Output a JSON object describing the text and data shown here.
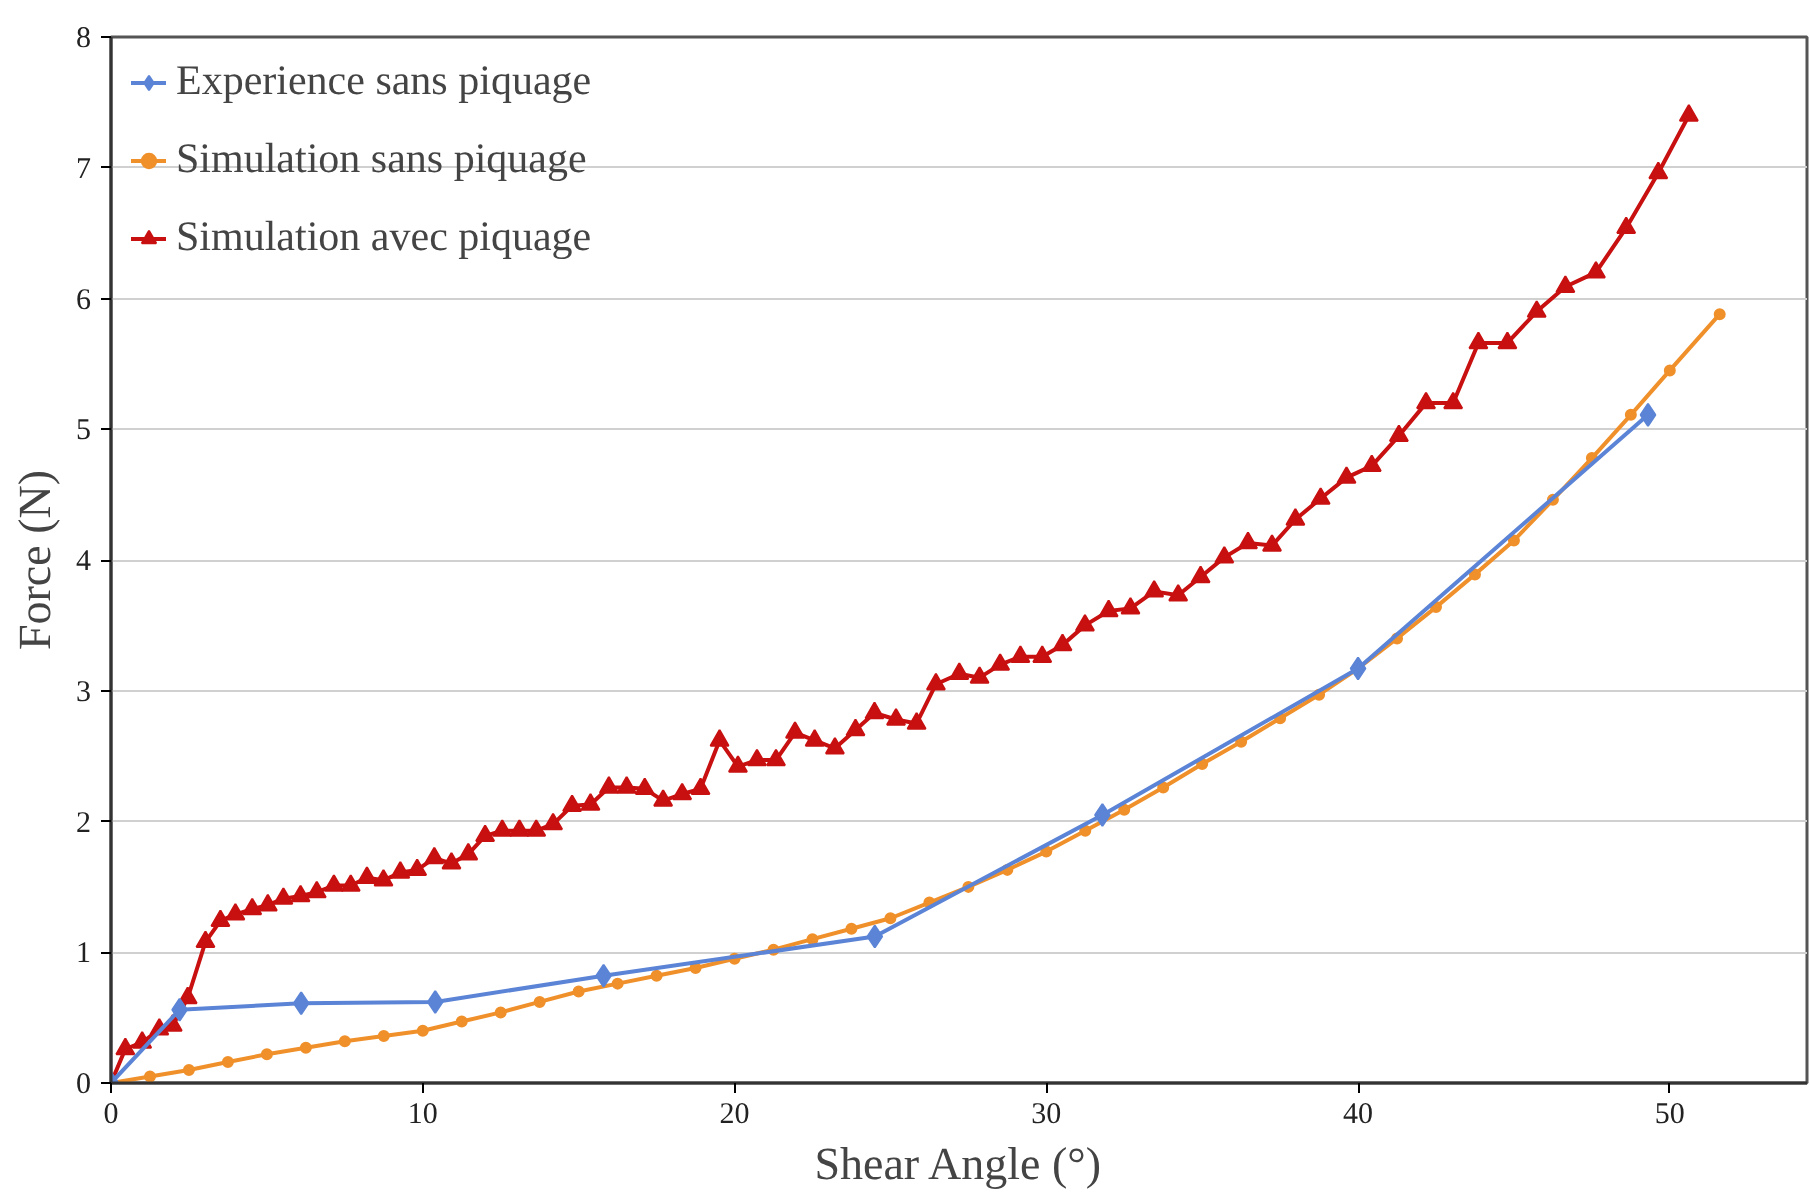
{
  "chart_data": {
    "type": "line",
    "xlabel": "Shear Angle (°)",
    "ylabel": "Force (N)",
    "xlim": [
      0,
      54.4
    ],
    "xticks": [
      0,
      10,
      20,
      30,
      40,
      50
    ],
    "ylim": [
      0,
      8
    ],
    "yticks": [
      0,
      1,
      2,
      3,
      4,
      5,
      6,
      7,
      8
    ],
    "grid": "y",
    "legend": "top left",
    "line_style": "solid",
    "series": [
      {
        "name": "Experience sans piquage",
        "color": "#5b84d6",
        "marker": "diamond",
        "x": [
          0,
          2.2,
          6.1,
          10.4,
          15.8,
          24.5,
          31.8,
          40.0,
          49.3
        ],
        "values": [
          0,
          0.56,
          0.61,
          0.62,
          0.82,
          1.12,
          2.05,
          3.17,
          5.11
        ]
      },
      {
        "name": "Simulation sans piquage",
        "color": "#f0902a",
        "marker": "circle",
        "x": [
          0,
          1.25,
          2.5,
          3.75,
          5,
          6.25,
          7.5,
          8.75,
          10,
          11.25,
          12.5,
          13.75,
          15,
          16.25,
          17.5,
          18.75,
          20,
          21.25,
          22.5,
          23.75,
          25,
          26.25,
          27.5,
          28.75,
          30,
          31.25,
          32.5,
          33.75,
          35,
          36.25,
          37.5,
          38.75,
          40,
          41.25,
          42.5,
          43.75,
          45,
          46.25,
          47.5,
          48.75,
          50,
          51.6
        ],
        "values": [
          0,
          0.05,
          0.1,
          0.16,
          0.22,
          0.27,
          0.32,
          0.36,
          0.4,
          0.47,
          0.54,
          0.62,
          0.7,
          0.76,
          0.82,
          0.88,
          0.95,
          1.02,
          1.1,
          1.18,
          1.26,
          1.38,
          1.5,
          1.63,
          1.77,
          1.93,
          2.09,
          2.26,
          2.44,
          2.61,
          2.79,
          2.97,
          3.17,
          3.4,
          3.64,
          3.89,
          4.15,
          4.46,
          4.78,
          5.11,
          5.45,
          5.88
        ]
      },
      {
        "name": "Simulation avec piquage",
        "color": "#c81010",
        "marker": "triangle",
        "x": [
          0,
          0.46,
          1.0,
          1.55,
          1.98,
          2.46,
          3.03,
          3.51,
          3.99,
          4.53,
          5.03,
          5.53,
          6.08,
          6.6,
          7.15,
          7.69,
          8.21,
          8.74,
          9.28,
          9.82,
          10.37,
          10.92,
          11.46,
          12.0,
          12.55,
          13.1,
          13.64,
          14.18,
          14.79,
          15.38,
          15.97,
          16.54,
          17.12,
          17.71,
          18.32,
          18.91,
          19.52,
          20.11,
          20.72,
          21.33,
          21.94,
          22.57,
          23.22,
          23.88,
          24.49,
          25.18,
          25.84,
          26.46,
          27.21,
          27.86,
          28.52,
          29.17,
          29.87,
          30.52,
          31.24,
          32.0,
          32.7,
          33.46,
          34.23,
          34.95,
          35.71,
          36.47,
          37.24,
          37.99,
          38.8,
          39.63,
          40.44,
          41.31,
          42.18,
          43.05,
          43.86,
          44.79,
          45.73,
          46.65,
          47.63,
          48.6,
          49.63,
          50.61
        ],
        "values": [
          0,
          0.26,
          0.31,
          0.41,
          0.44,
          0.65,
          1.08,
          1.24,
          1.29,
          1.33,
          1.36,
          1.41,
          1.43,
          1.46,
          1.51,
          1.51,
          1.57,
          1.55,
          1.61,
          1.63,
          1.72,
          1.68,
          1.75,
          1.89,
          1.93,
          1.93,
          1.93,
          1.98,
          2.12,
          2.13,
          2.26,
          2.26,
          2.25,
          2.16,
          2.21,
          2.25,
          2.62,
          2.42,
          2.47,
          2.47,
          2.68,
          2.62,
          2.56,
          2.7,
          2.83,
          2.78,
          2.75,
          3.05,
          3.13,
          3.1,
          3.2,
          3.26,
          3.26,
          3.35,
          3.5,
          3.61,
          3.63,
          3.76,
          3.73,
          3.87,
          4.02,
          4.13,
          4.11,
          4.31,
          4.47,
          4.63,
          4.72,
          4.95,
          5.2,
          5.2,
          5.66,
          5.66,
          5.9,
          6.09,
          6.2,
          6.54,
          6.96,
          7.4
        ]
      }
    ]
  }
}
